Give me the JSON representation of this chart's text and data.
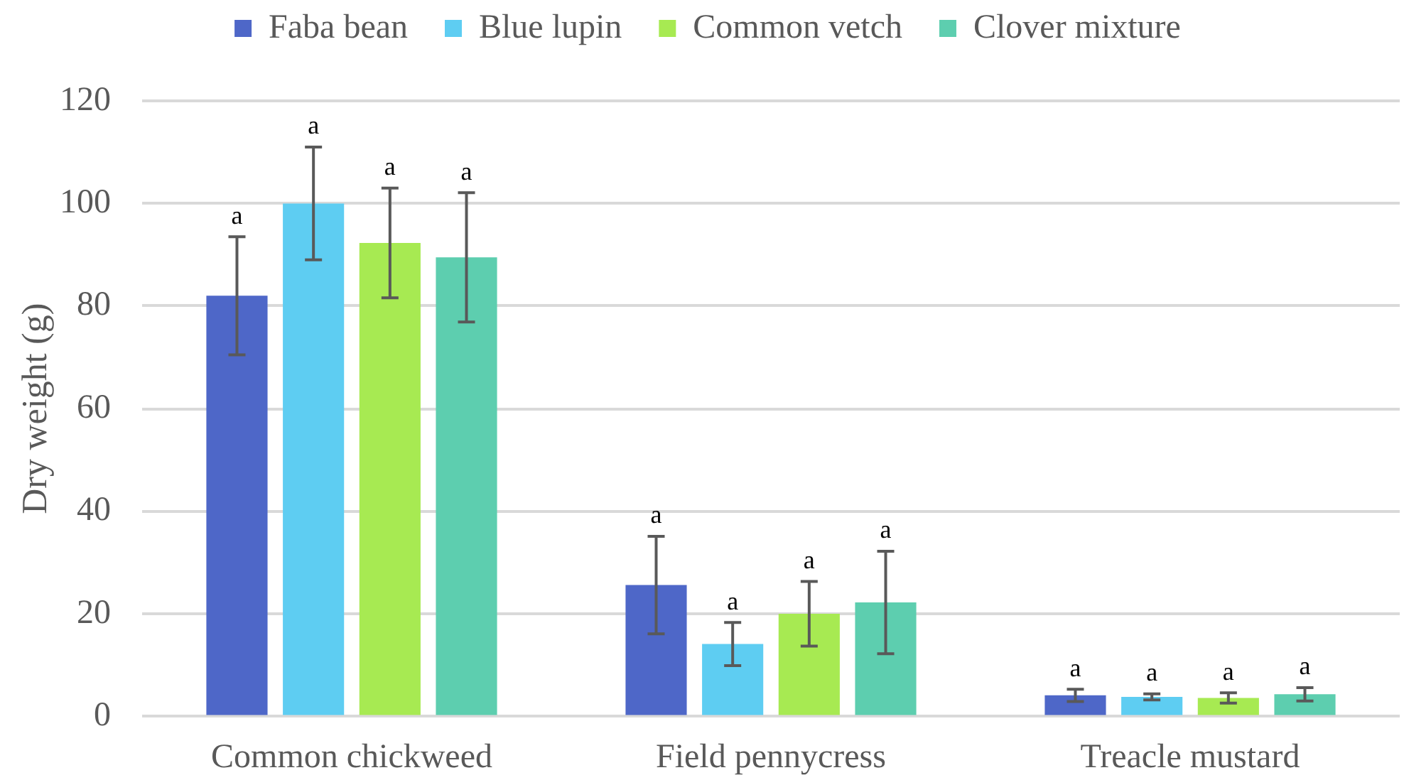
{
  "chart_data": {
    "type": "bar",
    "categories": [
      "Common chickweed",
      "Field pennycress",
      "Treacle mustard"
    ],
    "ylabel": "Dry weight (g)",
    "ylim": [
      0,
      120
    ],
    "yticks": [
      0,
      20,
      40,
      60,
      80,
      100,
      120
    ],
    "grid": "y",
    "legend": "top",
    "series": [
      {
        "name": "Faba bean",
        "color": "#4e67c8",
        "values": [
          82.0,
          25.6,
          4.1
        ],
        "errors": [
          11.5,
          9.5,
          1.2
        ],
        "value_labels": [
          "a",
          "a",
          "a"
        ]
      },
      {
        "name": "Blue lupin",
        "color": "#5ecdf2",
        "values": [
          100.0,
          14.1,
          3.8
        ],
        "errors": [
          11.0,
          4.2,
          0.6
        ],
        "value_labels": [
          "a",
          "a",
          "a"
        ]
      },
      {
        "name": "Common vetch",
        "color": "#a7ea52",
        "values": [
          92.3,
          20.0,
          3.6
        ],
        "errors": [
          10.7,
          6.3,
          1.0
        ],
        "value_labels": [
          "a",
          "a",
          "a"
        ]
      },
      {
        "name": "Clover mixture",
        "color": "#5dceaf",
        "values": [
          89.5,
          22.2,
          4.3
        ],
        "errors": [
          12.6,
          10.0,
          1.3
        ],
        "value_labels": [
          "a",
          "a",
          "a"
        ]
      }
    ]
  }
}
